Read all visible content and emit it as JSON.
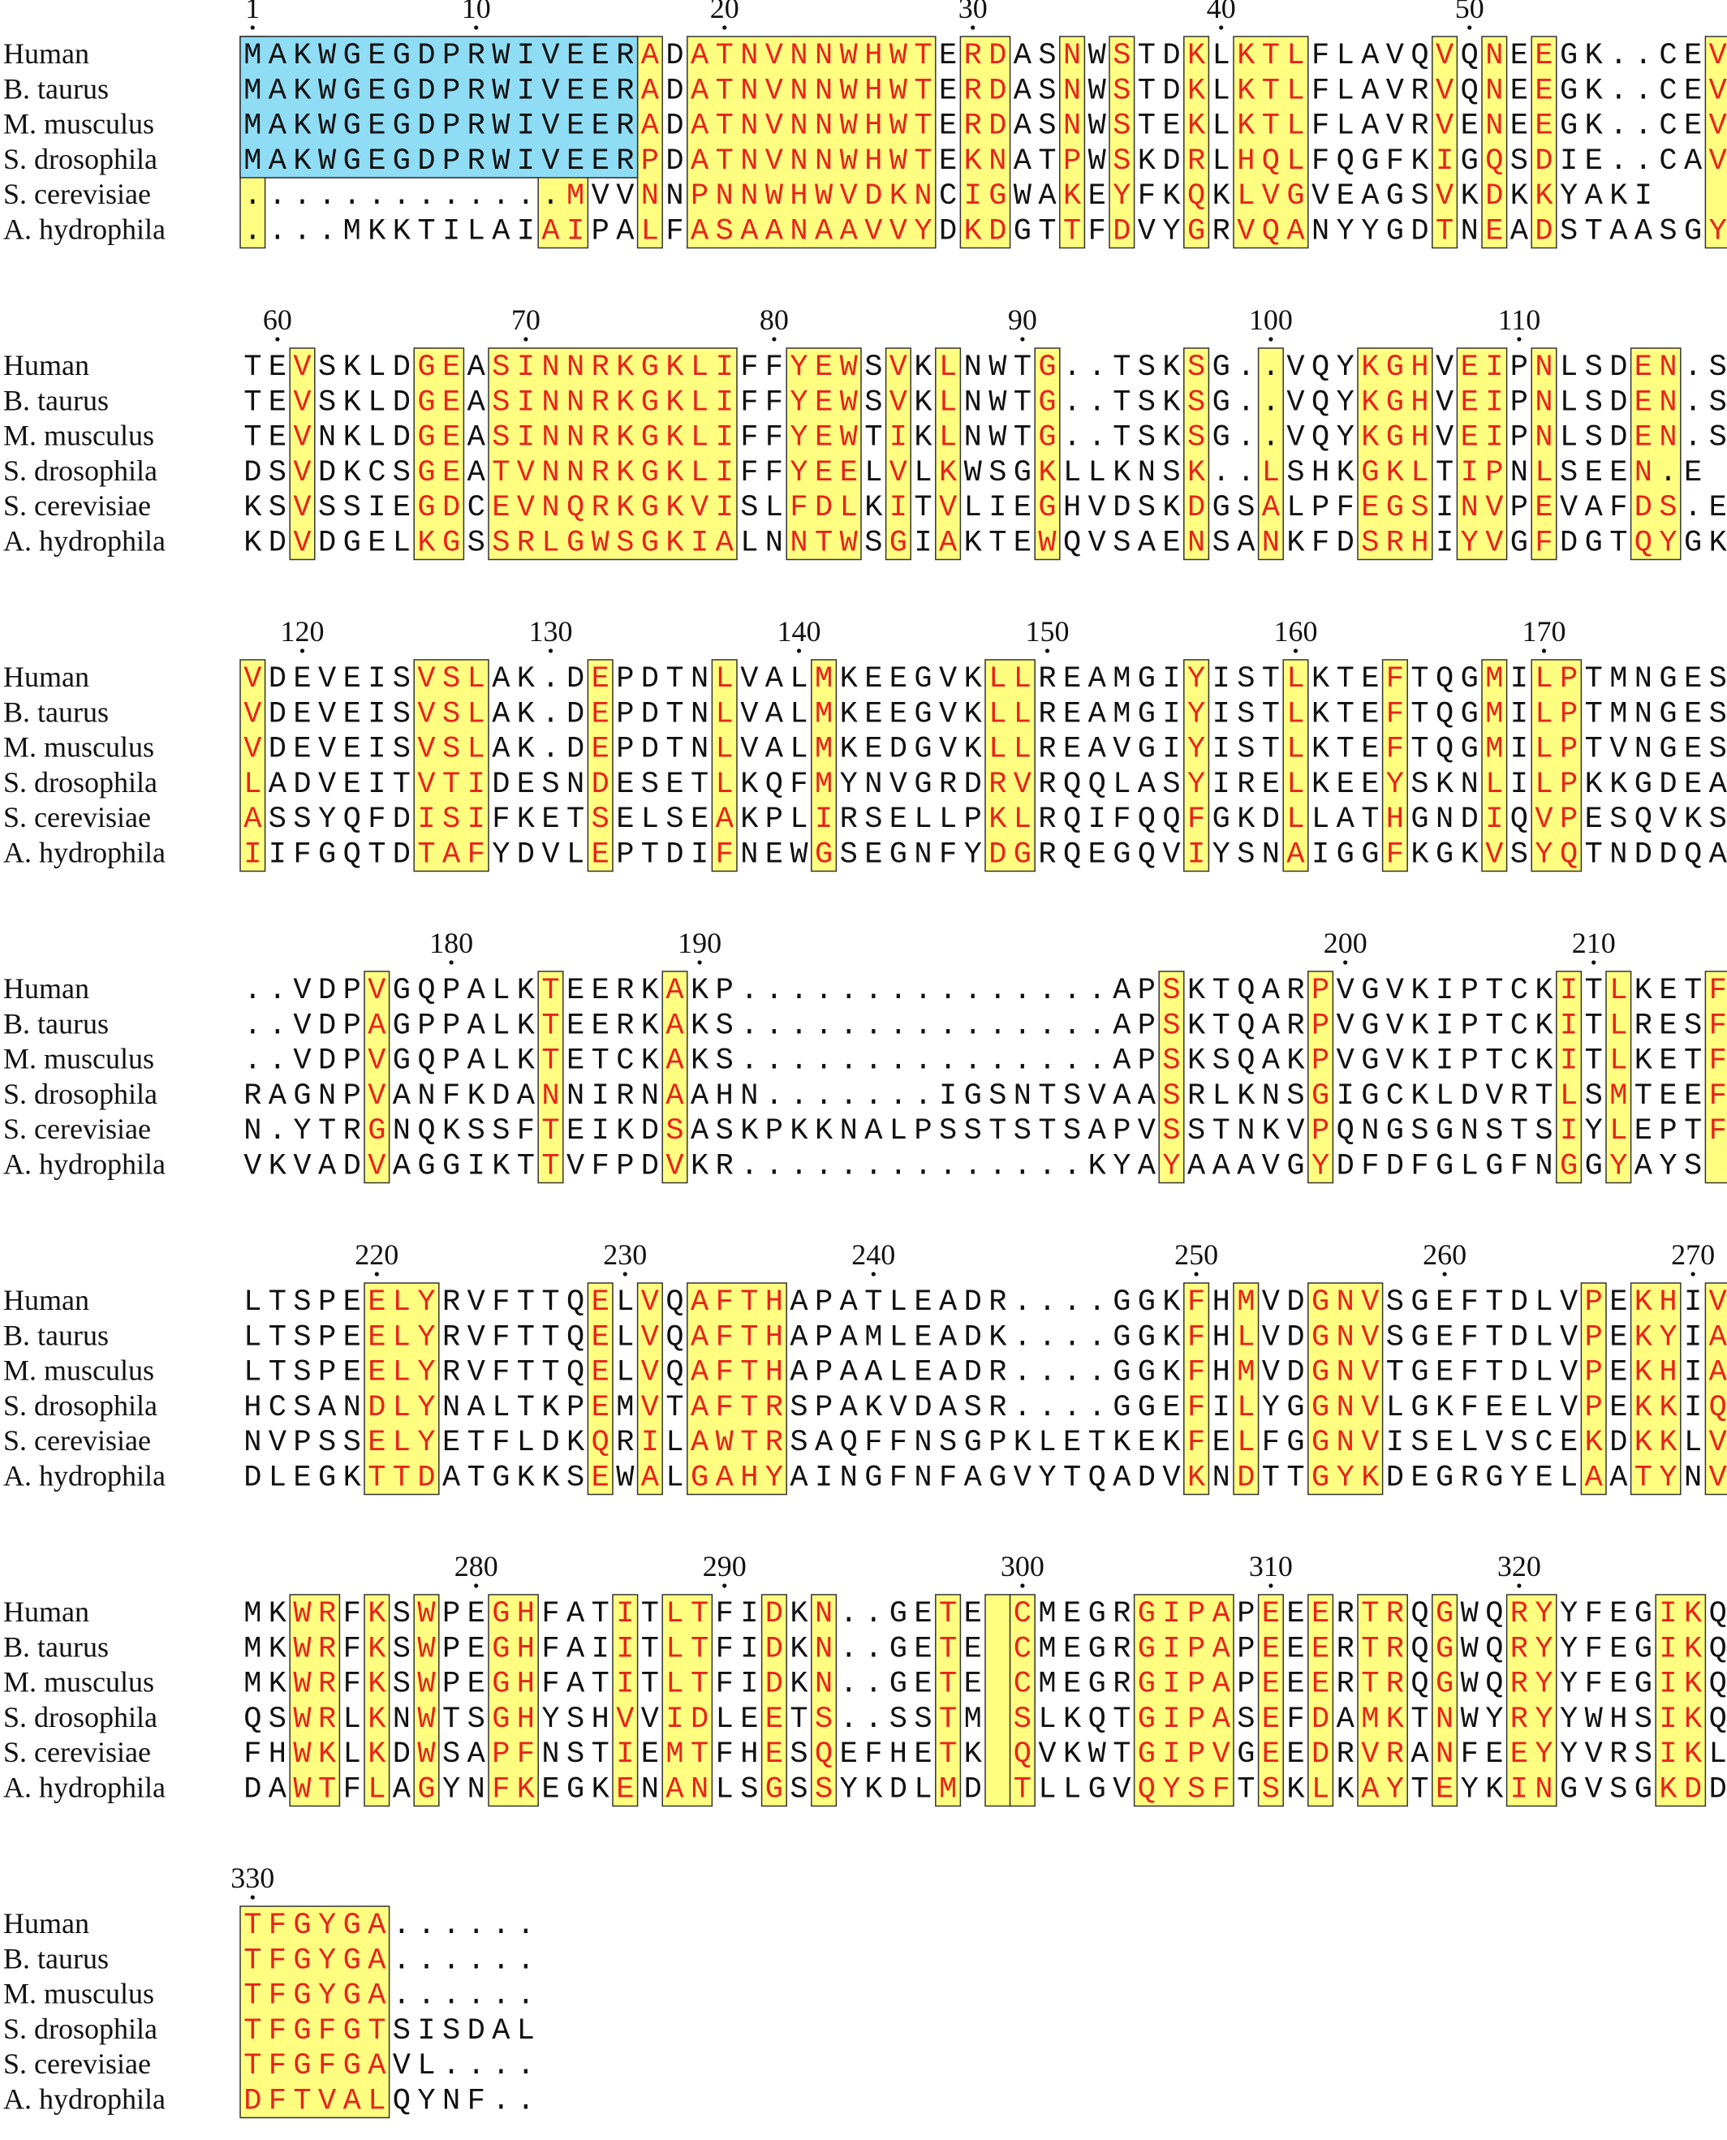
{
  "species": [
    "Human",
    "B. taurus",
    "M. musculus",
    "S. drosophila",
    "S. cerevisiae",
    "A. hydrophila"
  ],
  "colors": {
    "conserved_box_fill": "#fffe80",
    "conserved_residue": "#e8241c",
    "nterm_box_fill": "#8fdcf5",
    "residue": "#111111"
  },
  "alignment_blocks": [
    {
      "tick_labels": [
        "1",
        "10",
        "20",
        "30",
        "40",
        "50"
      ],
      "tick_cols": [
        0,
        9,
        19,
        29,
        39,
        49
      ],
      "rows": [
        "MAKWGEGDPRWIVEERADATNVNNWHWTERDASNWSTDKLKTLFLAVQVQNEEGK..CEV",
        "MAKWGEGDPRWIVEERADATNVNNWHWTERDASNWSTDKLKTLFLAVRVQNEEGK..CEV",
        "MAKWGEGDPRWIVEERADATNVNNWHWTERDASNWSTEKLKTLFLAVRVENEEGK..CEV",
        "MAKWGEGDPRWIVEERPDATNVNNWHWTEKNATPWSKDRLHQLFQGFKIGQSDIE..CAV",
        ".............MVVNNPNNWHWVDKNCIGWAKEYFKQKLVGVEAGSVKDKKYAKI",
        "....MKKTILAIAIPALFASAANAAVVYDKDGTTFDVYGRVQANYYGDTNEADSTAASGY"
      ],
      "conserved_spans": [
        [
          0,
          0
        ],
        [
          12,
          13
        ],
        [
          16,
          16
        ],
        [
          18,
          27
        ],
        [
          29,
          30
        ],
        [
          33,
          33
        ],
        [
          35,
          35
        ],
        [
          38,
          38
        ],
        [
          40,
          42
        ],
        [
          48,
          48
        ],
        [
          50,
          50
        ],
        [
          52,
          52
        ],
        [
          59,
          59
        ]
      ],
      "nterm_span": [
        0,
        15
      ],
      "nterm_rows": 4
    },
    {
      "tick_labels": [
        "60",
        "70",
        "80",
        "90",
        "100",
        "110"
      ],
      "tick_cols": [
        1,
        11,
        21,
        31,
        41,
        51
      ],
      "rows": [
        "TEVSKLDGEASINNRKGKLIFFYEWSVKLNWTG..TSKSG..VQYKGHVEIPNLSDEN.S",
        "TEVSKLDGEASINNRKGKLIFFYEWSVKLNWTG..TSKSG..VQYKGHVEIPNLSDEN.S",
        "TEVNKLDGEASINNRKGKLIFFYEWTIKLNWTG..TSKSG..VQYKGHVEIPNLSDEN.S",
        "DSVDKCSGEATVNNRKGKLIFFYEELVLKWSGKLLKNSK..LSHKGKLTIPNLSEEN.E",
        "KSVSSIEGDCEVNQRKGKVISLFDLKITVLIEGHVDSKDGSALPFEGSINVPEVAFDS.E",
        "KDVDGELKGSSRLGWSGKIALNNTWSGIAKTEWQVSAENSANKFDSRHIYVGFDGTQYGK"
      ],
      "conserved_spans": [
        [
          2,
          2
        ],
        [
          7,
          8
        ],
        [
          10,
          19
        ],
        [
          22,
          24
        ],
        [
          26,
          26
        ],
        [
          28,
          28
        ],
        [
          32,
          32
        ],
        [
          38,
          38
        ],
        [
          41,
          41
        ],
        [
          45,
          47
        ],
        [
          49,
          50
        ],
        [
          52,
          52
        ],
        [
          56,
          57
        ]
      ],
      "nterm_span": null,
      "nterm_rows": 0
    },
    {
      "tick_labels": [
        "120",
        "130",
        "140",
        "150",
        "160",
        "170"
      ],
      "tick_cols": [
        2,
        12,
        22,
        32,
        42,
        52
      ],
      "rows": [
        "VDEVEISVSLAK.DEPDTNLVALMKEEGVKLLREAMGIYISTLKTEFTQGMILPTMNGES",
        "VDEVEISVSLAK.DEPDTNLVALMKEEGVKLLREAMGIYISTLKTEFTQGMILPTMNGES",
        "VDEVEISVSLAK.DEPDTNLVALMKEDGVKLLREAVGIYISTLKTEFTQGMILPTVNGES",
        "LADVEITVTIDESNDESETLKQFMYNVGRDRVRQQLASYIRELKEEYSKNLILPKKGDEA",
        "ASSYQFDISIFKETSELSEAKPLIRSELLPKLRQIFQQFGKDLLATHGNDIQVPESQVKS",
        "IIFGQTDTAFYDVLEPTDIFNEWGSEGNFYDGRQEGQVIYSNAIGGFKGKVSYQTNDDQA"
      ],
      "conserved_spans": [
        [
          0,
          0
        ],
        [
          7,
          9
        ],
        [
          14,
          14
        ],
        [
          19,
          19
        ],
        [
          23,
          23
        ],
        [
          30,
          31
        ],
        [
          38,
          38
        ],
        [
          42,
          42
        ],
        [
          46,
          46
        ],
        [
          50,
          50
        ],
        [
          52,
          53
        ]
      ],
      "nterm_span": null,
      "nterm_rows": 0
    },
    {
      "tick_labels": [
        "180",
        "190",
        "200",
        "210"
      ],
      "tick_cols": [
        8,
        18,
        44,
        54
      ],
      "rows": [
        "..VDPVGQPALKTEERKAKP...............APSKTQARPVGVKIPTCKITLKETF",
        "..VDPAGPPALKTEERKAKS...............APSKTQARPVGVKIPTCKITLRESF",
        "..VDPVGQPALKTETCKAKS...............APSKSQAKPVGVKIPTCKITLKETF",
        "RAGNPVANFKDANNIRNAAHN.......IGSNTSVAASRLKNSGIGCKLDVRTLSMTEEF",
        "N.YTRGNQKSSFTEIKDSASKPKKNALPSSTSTSAPVSSTNKVPQNGSGNSTSIYLEPTF",
        "VKVADVAGGIKTTVFPDVKR..............KYAYAAAVGYDFDFGLGFNGGYAYS"
      ],
      "conserved_spans": [
        [
          5,
          5
        ],
        [
          12,
          12
        ],
        [
          17,
          17
        ],
        [
          37,
          37
        ],
        [
          43,
          43
        ],
        [
          53,
          53
        ],
        [
          55,
          55
        ],
        [
          59,
          59
        ]
      ],
      "nterm_span": null,
      "nterm_rows": 0
    },
    {
      "tick_labels": [
        "220",
        "230",
        "240",
        "250",
        "260",
        "270"
      ],
      "tick_cols": [
        5,
        15,
        25,
        38,
        48,
        58
      ],
      "rows": [
        "LTSPEELYRVFTTQELVQAFTHAPATLEADR....GGKFHMVDGNVSGEFTDLVPEKHIV",
        "LTSPEELYRVFTTQELVQAFTHAPAMLEADK....GGKFHLVDGNVSGEFTDLVPEKYIA",
        "LTSPEELYRVFTTQELVQAFTHAPAALEADR....GGKFHMVDGNVTGEFTDLVPEKHIA",
        "HCSANDLYNALTKPEMVTAFTRSPAKVDASR....GGEFILYGGNVLGKFEELVPEKKIQ",
        "NVPSSELYETFLDKQRILAWTRSAQFFNSGPKLETKEKFELFGGNVISELVSCEKDKKLV",
        "DLEGKTTDATGKKSEWALGAHYAINGFNFAGVYTQADVKNDTTGYKDEGRGYELAATYNV"
      ],
      "conserved_spans": [
        [
          5,
          7
        ],
        [
          14,
          14
        ],
        [
          16,
          16
        ],
        [
          18,
          21
        ],
        [
          38,
          38
        ],
        [
          40,
          40
        ],
        [
          43,
          45
        ],
        [
          54,
          54
        ],
        [
          56,
          57
        ],
        [
          59,
          59
        ]
      ],
      "nterm_span": null,
      "nterm_rows": 0
    },
    {
      "tick_labels": [
        "280",
        "290",
        "300",
        "310",
        "320"
      ],
      "tick_cols": [
        9,
        19,
        31,
        41,
        51
      ],
      "rows": [
        "MKWRFKSWPEGHFATITLTFIDKN..GETE CMEGRGIPAPEEERTRQGWQRYYFEGIKQ",
        "MKWRFKSWPEGHFAIITLTFIDKN..GETE CMEGRGIPAPEEERTRQGWQRYYFEGIKQ",
        "MKWRFKSWPEGHFATITLTFIDKN..GETE CMEGRGIPAPEEERTRQGWQRYYFEGIKQ",
        "QSWRLKNWTSGHYSHVVIDLEETS..SSTM SLKQTGIPASEFDAMKTNWYRYYWHSIKQ",
        "FHWKLKDWSAPFNSTIEMTFHESQEFHETK QVKWTGIPVGEEDRVRANFEEYYVRSIKL",
        "DAWTFLAGYNFKEGKENANLSGSSYKDLMD TLLGVQYSFTSKLKAYTEYKINGVSGKDD"
      ],
      "conserved_spans": [
        [
          2,
          3
        ],
        [
          5,
          5
        ],
        [
          7,
          7
        ],
        [
          10,
          11
        ],
        [
          15,
          15
        ],
        [
          17,
          18
        ],
        [
          21,
          21
        ],
        [
          23,
          23
        ],
        [
          28,
          28
        ],
        [
          30,
          30
        ],
        [
          31,
          31
        ],
        [
          36,
          39
        ],
        [
          41,
          41
        ],
        [
          43,
          43
        ],
        [
          45,
          46
        ],
        [
          48,
          48
        ],
        [
          51,
          52
        ],
        [
          57,
          58
        ]
      ],
      "nterm_span": null,
      "nterm_rows": 0
    },
    {
      "tick_labels": [
        "330"
      ],
      "tick_cols": [
        0
      ],
      "rows": [
        "TFGYGA......",
        "TFGYGA......",
        "TFGYGA......",
        "TFGFGTSISDAL",
        "TFGFGAVL....",
        "DFTVALQYNF.."
      ],
      "conserved_spans": [
        [
          0,
          5
        ]
      ],
      "nterm_span": null,
      "nterm_rows": 0
    }
  ]
}
